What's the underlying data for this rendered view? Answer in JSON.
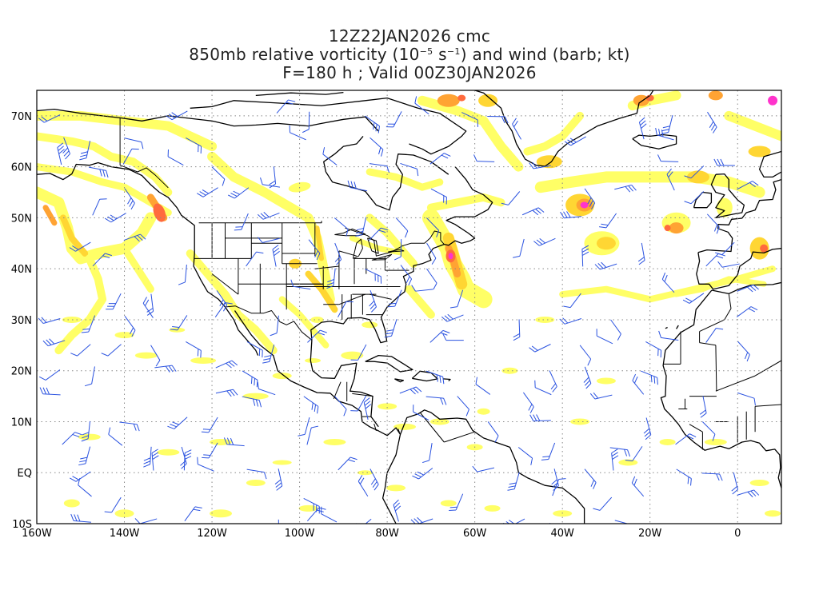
{
  "title": {
    "line1": "12Z22JAN2026 cmc",
    "line2_prefix": "850mb relative vorticity (10",
    "line2_exp1": "−5",
    "line2_mid": " s",
    "line2_exp2": "−1",
    "line2_suffix": ") and wind (barb; kt)",
    "line3": "F=180 h ; Valid 00Z30JAN2026"
  },
  "map": {
    "projection": "cylindrical equidistant",
    "lon_range": [
      -160,
      10
    ],
    "lat_range": [
      -10,
      75
    ],
    "gridlines": "dotted",
    "x_ticks": [
      "160W",
      "140W",
      "120W",
      "100W",
      "80W",
      "60W",
      "40W",
      "20W",
      "0"
    ],
    "y_ticks": [
      "70N",
      "60N",
      "50N",
      "40N",
      "30N",
      "20N",
      "10N",
      "EQ",
      "10S"
    ],
    "colors": {
      "shade_light": "#ffff66",
      "shade_mid": "#ffd633",
      "shade_orange": "#ffa333",
      "shade_red": "#ff6a3d",
      "shade_magenta": "#ff33cc",
      "barb": "#2a52e0",
      "coast": "#000000"
    }
  }
}
